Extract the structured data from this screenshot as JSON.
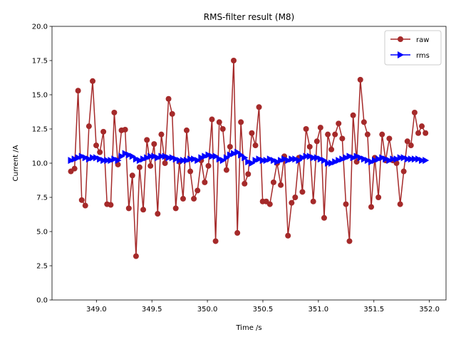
{
  "chart_data": {
    "type": "line",
    "title": "RMS-filter result (M8)",
    "x_label": "Time /s",
    "y_label": "Current /A",
    "x": [
      348.77,
      348.803,
      348.835,
      348.868,
      348.9,
      348.933,
      348.966,
      348.998,
      349.031,
      349.063,
      349.096,
      349.129,
      349.161,
      349.194,
      349.226,
      349.259,
      349.292,
      349.324,
      349.357,
      349.389,
      349.422,
      349.455,
      349.487,
      349.52,
      349.552,
      349.585,
      349.618,
      349.65,
      349.683,
      349.715,
      349.748,
      349.781,
      349.813,
      349.846,
      349.878,
      349.911,
      349.944,
      349.976,
      350.009,
      350.041,
      350.074,
      350.107,
      350.139,
      350.172,
      350.204,
      350.237,
      350.27,
      350.302,
      350.335,
      350.367,
      350.4,
      350.433,
      350.465,
      350.498,
      350.53,
      350.563,
      350.596,
      350.628,
      350.661,
      350.693,
      350.726,
      350.759,
      350.791,
      350.824,
      350.856,
      350.889,
      350.922,
      350.954,
      350.987,
      351.019,
      351.052,
      351.085,
      351.117,
      351.15,
      351.182,
      351.215,
      351.248,
      351.28,
      351.313,
      351.345,
      351.378,
      351.411,
      351.443,
      351.476,
      351.508,
      351.541,
      351.574,
      351.606,
      351.639,
      351.671,
      351.704,
      351.737,
      351.769,
      351.802,
      351.834,
      351.867,
      351.9,
      351.932,
      351.965
    ],
    "series": [
      {
        "name": "raw",
        "color": "#a52a2a",
        "marker": "circle",
        "values": [
          9.4,
          9.6,
          15.3,
          7.3,
          6.9,
          12.7,
          16.0,
          11.3,
          10.8,
          12.3,
          7.0,
          6.95,
          13.7,
          9.9,
          12.4,
          12.45,
          6.7,
          9.1,
          3.2,
          9.7,
          6.6,
          11.7,
          9.8,
          11.4,
          6.3,
          12.1,
          10.0,
          14.7,
          13.6,
          6.7,
          10.1,
          7.4,
          12.4,
          9.4,
          7.4,
          8.0,
          10.2,
          8.6,
          9.8,
          13.2,
          4.3,
          13.0,
          12.5,
          9.5,
          11.2,
          17.5,
          4.9,
          13.0,
          8.5,
          9.2,
          12.2,
          11.3,
          14.1,
          7.2,
          7.2,
          7.0,
          8.6,
          10.0,
          8.4,
          10.5,
          4.7,
          7.1,
          7.5,
          10.4,
          7.9,
          12.5,
          11.2,
          7.2,
          11.6,
          12.6,
          6.0,
          12.1,
          11.0,
          12.1,
          12.9,
          11.8,
          7.0,
          4.3,
          13.5,
          10.1,
          16.1,
          13.0,
          12.1,
          6.8,
          10.4,
          7.5,
          12.1,
          10.2,
          11.8,
          10.2,
          10.0,
          7.0,
          9.4,
          11.6,
          11.3,
          13.7,
          12.2,
          12.7,
          12.2
        ]
      },
      {
        "name": "rms",
        "color": "#0000ff",
        "marker": "triangle-right",
        "values": [
          10.2,
          10.3,
          10.4,
          10.5,
          10.4,
          10.3,
          10.4,
          10.4,
          10.3,
          10.2,
          10.2,
          10.2,
          10.3,
          10.2,
          10.5,
          10.7,
          10.6,
          10.5,
          10.3,
          10.2,
          10.3,
          10.4,
          10.5,
          10.5,
          10.4,
          10.5,
          10.5,
          10.4,
          10.4,
          10.3,
          10.2,
          10.2,
          10.2,
          10.3,
          10.3,
          10.2,
          10.4,
          10.5,
          10.6,
          10.5,
          10.5,
          10.3,
          10.2,
          10.4,
          10.6,
          10.7,
          10.8,
          10.6,
          10.4,
          10.1,
          10.0,
          10.2,
          10.3,
          10.2,
          10.2,
          10.3,
          10.2,
          10.1,
          10.2,
          10.3,
          10.2,
          10.3,
          10.3,
          10.2,
          10.4,
          10.5,
          10.5,
          10.4,
          10.4,
          10.3,
          10.2,
          10.0,
          10.0,
          10.1,
          10.2,
          10.3,
          10.4,
          10.5,
          10.4,
          10.5,
          10.4,
          10.3,
          10.2,
          10.1,
          10.2,
          10.3,
          10.4,
          10.3,
          10.2,
          10.3,
          10.3,
          10.4,
          10.4,
          10.3,
          10.3,
          10.3,
          10.3,
          10.2,
          10.2
        ]
      }
    ],
    "xlim": [
      348.6,
      352.15
    ],
    "xticks": [
      {
        "value": 349,
        "label": "349.0"
      },
      349.5,
      {
        "value": 350,
        "label": "350.0"
      },
      350.5,
      {
        "value": 351,
        "label": "351.0"
      },
      351.5,
      {
        "value": 352,
        "label": "352.0"
      }
    ],
    "ylim": [
      0,
      20
    ],
    "yticks": [
      {
        "value": 0,
        "label": "0.0"
      },
      2.5,
      {
        "value": 5,
        "label": "5.0"
      },
      7.5,
      {
        "value": 10,
        "label": "10.0"
      },
      12.5,
      {
        "value": 15,
        "label": "15.0"
      },
      17.5,
      {
        "value": 20,
        "label": "20.0"
      }
    ],
    "legend": "upper right"
  }
}
